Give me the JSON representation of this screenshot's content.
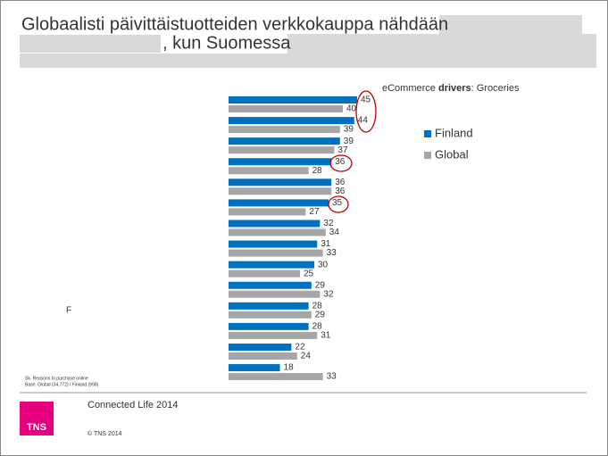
{
  "chart_data": {
    "type": "bar",
    "title": [
      "Globaalisti päivittäistuotteiden verkkokauppa nähdään",
      ", kun Suomessa"
    ],
    "subtitle_prefix": "eCommerce",
    "subtitle_bold": "drivers",
    "subtitle_suffix": ": Groceries",
    "categories": [
      null,
      null,
      null,
      null,
      null,
      null,
      null,
      null,
      null,
      null,
      null,
      null,
      null,
      null
    ],
    "series": [
      {
        "name": "Finland",
        "color": "#0070c0",
        "values": [
          45,
          44,
          39,
          36,
          36,
          35,
          32,
          31,
          30,
          29,
          28,
          28,
          22,
          18
        ]
      },
      {
        "name": "Global",
        "color": "#a6a6a6",
        "values": [
          40,
          39,
          37,
          28,
          36,
          27,
          34,
          33,
          25,
          32,
          29,
          31,
          24,
          33
        ]
      }
    ],
    "legend": "right",
    "side_note": "F",
    "footnote": [
      "Sk. Reasons to purchase online",
      "Base: Global (34,772) / Finland (998)"
    ],
    "footer": "Connected Life 2014",
    "copyright": "© TNS 2014",
    "logo": "TNS"
  }
}
